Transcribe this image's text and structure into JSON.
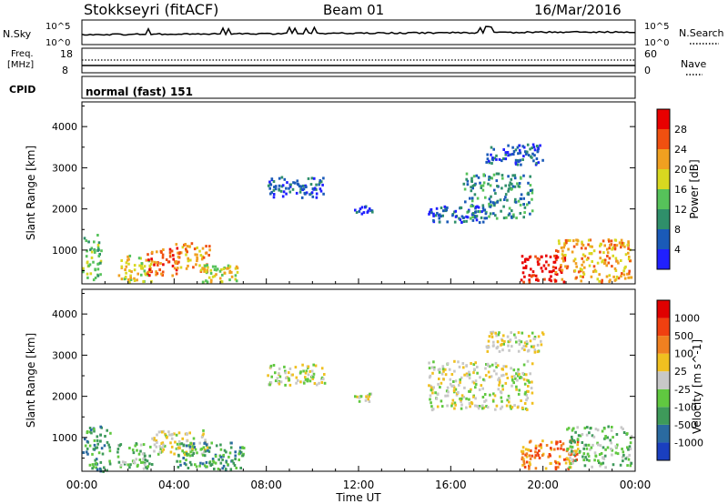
{
  "header": {
    "station": "Stokkseyri (fitACF)",
    "beam": "Beam 01",
    "date": "16/Mar/2016"
  },
  "top_panels": {
    "nsky": {
      "label": "N.Sky",
      "left_ticks": [
        "10^5",
        "10^0"
      ],
      "right_label": "N.Search",
      "right_ticks": [
        "10^5",
        "10^0"
      ]
    },
    "freq": {
      "label": "Freq.",
      "unit": "[MHz]",
      "left_ticks": [
        "18",
        "8"
      ],
      "right_label": "Nave",
      "right_ticks": [
        "60",
        "0"
      ]
    },
    "cpid": {
      "label": "CPID",
      "value": "normal (fast) 151"
    }
  },
  "chart_data": [
    {
      "type": "heatmap",
      "name": "power",
      "ylabel": "Slant Range [km]",
      "ylim": [
        180,
        4600
      ],
      "yticks": [
        1000,
        2000,
        3000,
        4000
      ],
      "xlabel": "Time UT",
      "xlim": [
        0,
        24
      ],
      "xticks": [
        "00:00",
        "04:00",
        "08:00",
        "12:00",
        "16:00",
        "20:00",
        "00:00"
      ],
      "colorbar": {
        "label": "Power [dB]",
        "ticks": [
          "4",
          "8",
          "12",
          "16",
          "20",
          "24",
          "28"
        ],
        "colors": [
          "#2020ff",
          "#1a5ab8",
          "#2f8f6a",
          "#56c25a",
          "#d8d820",
          "#f0a020",
          "#f05010",
          "#e80000"
        ]
      },
      "regions": [
        {
          "t0": 0.0,
          "t1": 0.8,
          "r0": 200,
          "r1": 1400,
          "level": 3
        },
        {
          "t0": 1.5,
          "t1": 3.0,
          "r0": 250,
          "r1": 900,
          "level": 4
        },
        {
          "t0": 2.8,
          "t1": 4.2,
          "r0": 400,
          "r1": 1100,
          "level": 6
        },
        {
          "t0": 4.0,
          "t1": 5.5,
          "r0": 500,
          "r1": 1200,
          "level": 5
        },
        {
          "t0": 5.2,
          "t1": 6.8,
          "r0": 250,
          "r1": 700,
          "level": 4
        },
        {
          "t0": 8.0,
          "t1": 10.5,
          "r0": 2300,
          "r1": 2800,
          "level": 1
        },
        {
          "t0": 11.8,
          "t1": 12.6,
          "r0": 1900,
          "r1": 2100,
          "level": 1
        },
        {
          "t0": 15.0,
          "t1": 17.5,
          "r0": 1700,
          "r1": 2100,
          "level": 1
        },
        {
          "t0": 16.5,
          "t1": 19.5,
          "r0": 1800,
          "r1": 2900,
          "level": 2
        },
        {
          "t0": 17.5,
          "t1": 20.0,
          "r0": 3100,
          "r1": 3600,
          "level": 1
        },
        {
          "t0": 19.0,
          "t1": 21.0,
          "r0": 250,
          "r1": 900,
          "level": 7
        },
        {
          "t0": 20.5,
          "t1": 23.8,
          "r0": 250,
          "r1": 1300,
          "level": 5
        }
      ]
    },
    {
      "type": "heatmap",
      "name": "velocity",
      "ylabel": "Slant Range [km]",
      "ylim": [
        180,
        4600
      ],
      "yticks": [
        1000,
        2000,
        3000,
        4000
      ],
      "xlabel": "Time UT",
      "xlim": [
        0,
        24
      ],
      "xticks": [
        "00:00",
        "04:00",
        "08:00",
        "12:00",
        "16:00",
        "20:00",
        "00:00"
      ],
      "colorbar": {
        "label": "Velocity [m s^-1]",
        "ticks": [
          "1000",
          "500",
          "100",
          "25",
          "-25",
          "-100",
          "-500",
          "-1000"
        ],
        "colors": [
          "#1a3fbf",
          "#2a6aa0",
          "#3e9a5a",
          "#60c840",
          "#c8c8c8",
          "#f0c020",
          "#f08020",
          "#f04010",
          "#e00000"
        ]
      },
      "regions": [
        {
          "t0": 0.0,
          "t1": 1.2,
          "r0": 200,
          "r1": 1300,
          "level": 2
        },
        {
          "t0": 1.5,
          "t1": 3.0,
          "r0": 250,
          "r1": 900,
          "level": 3
        },
        {
          "t0": 3.0,
          "t1": 5.5,
          "r0": 600,
          "r1": 1200,
          "level": 4
        },
        {
          "t0": 4.0,
          "t1": 7.0,
          "r0": 250,
          "r1": 900,
          "level": 2
        },
        {
          "t0": 8.0,
          "t1": 10.5,
          "r0": 2300,
          "r1": 2800,
          "level": 4
        },
        {
          "t0": 11.8,
          "t1": 12.6,
          "r0": 1900,
          "r1": 2100,
          "level": 4
        },
        {
          "t0": 15.0,
          "t1": 19.5,
          "r0": 1700,
          "r1": 2900,
          "level": 4
        },
        {
          "t0": 17.5,
          "t1": 20.0,
          "r0": 3100,
          "r1": 3600,
          "level": 4
        },
        {
          "t0": 19.0,
          "t1": 21.5,
          "r0": 250,
          "r1": 1000,
          "level": 6
        },
        {
          "t0": 21.0,
          "t1": 23.8,
          "r0": 300,
          "r1": 1300,
          "level": 3
        }
      ]
    }
  ]
}
